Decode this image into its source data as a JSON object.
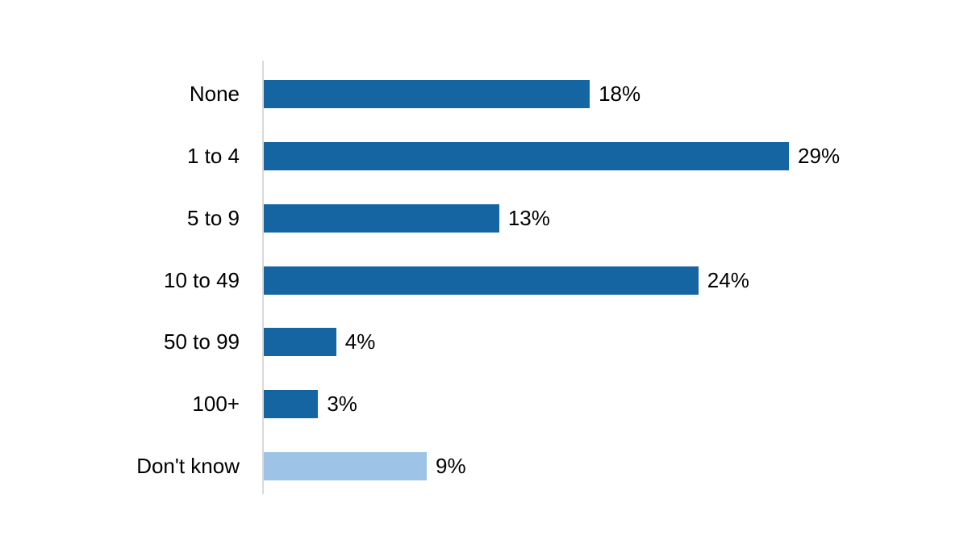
{
  "chart_data": {
    "type": "bar",
    "orientation": "horizontal",
    "title": "",
    "xlabel": "",
    "ylabel": "",
    "categories": [
      "None",
      "1 to 4",
      "5 to 9",
      "10 to 49",
      "50 to 99",
      "100+",
      "Don't know"
    ],
    "values": [
      18,
      29,
      13,
      24,
      4,
      3,
      9
    ],
    "value_labels": [
      "18%",
      "29%",
      "13%",
      "24%",
      "4%",
      "3%",
      "9%"
    ],
    "bar_colors": [
      "#1565A2",
      "#1565A2",
      "#1565A2",
      "#1565A2",
      "#1565A2",
      "#1565A2",
      "#9DC3E6"
    ],
    "xlim": [
      0,
      38
    ],
    "grid": false,
    "legend": null,
    "axis_visible": "y-axis-line-only",
    "colors": {
      "primary_bar": "#1565A2",
      "dont_know_bar": "#9DC3E6",
      "axis_line": "#D9D9D9",
      "label_text": "#000000",
      "background": "#FFFFFF"
    }
  }
}
